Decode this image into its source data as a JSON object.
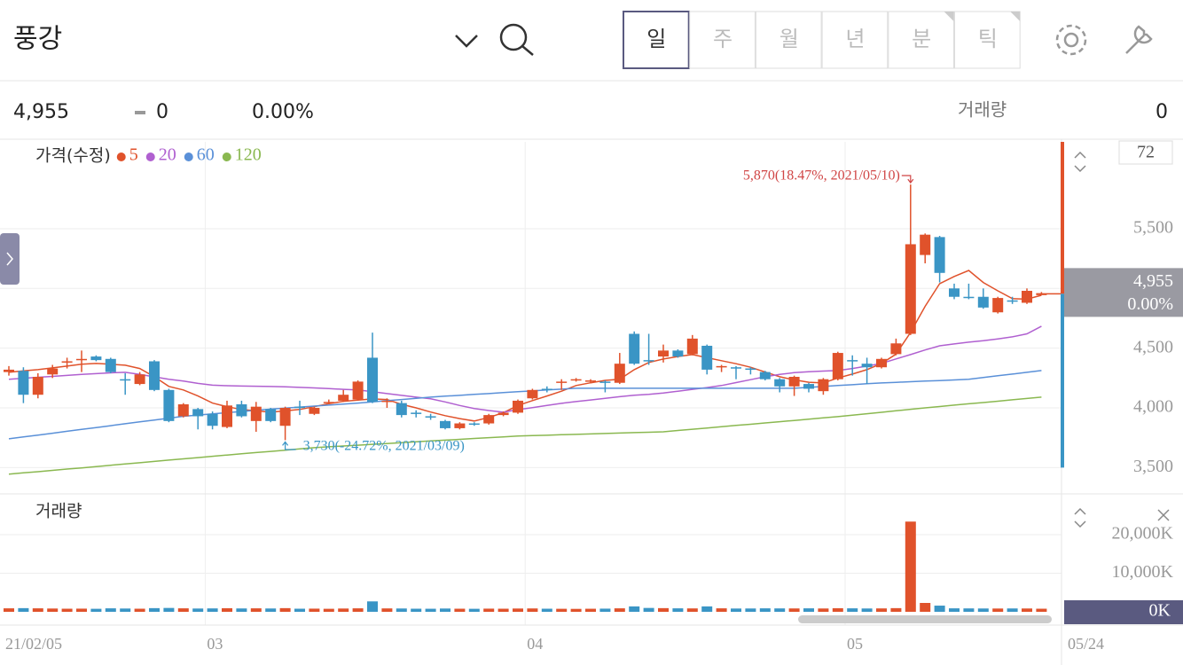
{
  "header": {
    "title": "풍강",
    "tabs": [
      "일",
      "주",
      "월",
      "년",
      "분",
      "틱"
    ],
    "active_tab": "일",
    "price": "4,955",
    "change": "0",
    "change_pct": "0.00%",
    "volume_label": "거래량",
    "volume": "0"
  },
  "chart_data": {
    "type": "candlestick",
    "legend_title": "가격(수정)",
    "visible_count": 72,
    "categories": [
      "21/02/05",
      null,
      null,
      null,
      null,
      null,
      null,
      null,
      null,
      null,
      null,
      null,
      null,
      null,
      "03",
      null,
      null,
      null,
      null,
      null,
      null,
      null,
      null,
      null,
      null,
      null,
      null,
      null,
      null,
      null,
      null,
      null,
      null,
      null,
      null,
      null,
      "04",
      null,
      null,
      null,
      null,
      null,
      null,
      null,
      null,
      null,
      null,
      null,
      null,
      null,
      null,
      null,
      null,
      null,
      null,
      null,
      null,
      null,
      "05",
      null,
      null,
      null,
      null,
      null,
      null,
      null,
      null,
      null,
      null,
      null,
      null,
      "05/24"
    ],
    "open": [
      4300,
      4310,
      4110,
      4280,
      4380,
      4400,
      4430,
      4410,
      4240,
      4200,
      4390,
      4150,
      3930,
      3990,
      3950,
      3840,
      4030,
      3890,
      3990,
      3850,
      4010,
      3950,
      4040,
      4060,
      4070,
      4420,
      4050,
      4040,
      3960,
      3930,
      3890,
      3830,
      3870,
      3870,
      3940,
      3960,
      4080,
      4160,
      4210,
      4230,
      4220,
      4220,
      4210,
      4620,
      4400,
      4430,
      4480,
      4450,
      4520,
      4340,
      4340,
      4330,
      4300,
      4240,
      4180,
      4200,
      4140,
      4240,
      4400,
      4370,
      4340,
      4450,
      4620,
      5280,
      5430,
      5000,
      4930,
      4930,
      4800,
      4900,
      4880,
      4955
    ],
    "high": [
      4350,
      4340,
      4290,
      4360,
      4420,
      4480,
      4440,
      4420,
      4290,
      4300,
      4400,
      4160,
      4040,
      4000,
      3970,
      4060,
      4060,
      4050,
      4000,
      4010,
      4060,
      4010,
      4070,
      4150,
      4230,
      4630,
      4080,
      4060,
      3980,
      3950,
      3900,
      3880,
      3880,
      3950,
      3970,
      4070,
      4160,
      4180,
      4240,
      4250,
      4240,
      4230,
      4460,
      4640,
      4620,
      4530,
      4490,
      4610,
      4530,
      4360,
      4350,
      4340,
      4310,
      4250,
      4270,
      4210,
      4250,
      4470,
      4440,
      4420,
      4420,
      4580,
      5870,
      5460,
      5440,
      5040,
      5040,
      5000,
      4930,
      4930,
      5000,
      4970
    ],
    "low": [
      4270,
      4040,
      4080,
      4250,
      4330,
      4300,
      4390,
      4290,
      4110,
      4190,
      4140,
      3880,
      3920,
      3820,
      3820,
      3830,
      3920,
      3800,
      3880,
      3730,
      3940,
      3940,
      4030,
      4050,
      4060,
      4040,
      4000,
      3920,
      3920,
      3900,
      3820,
      3820,
      3850,
      3860,
      3930,
      3950,
      4070,
      4130,
      4150,
      4220,
      4210,
      4130,
      4200,
      4360,
      4360,
      4380,
      4420,
      4440,
      4280,
      4300,
      4240,
      4280,
      4230,
      4130,
      4100,
      4130,
      4110,
      4230,
      4270,
      4200,
      4330,
      4440,
      4610,
      5210,
      5050,
      4910,
      4910,
      4830,
      4790,
      4870,
      4870,
      4950
    ],
    "close": [
      4320,
      4110,
      4260,
      4330,
      4390,
      4410,
      4400,
      4300,
      4230,
      4280,
      4150,
      3890,
      4030,
      3930,
      3850,
      4020,
      3930,
      4010,
      3890,
      4000,
      4000,
      4000,
      4050,
      4110,
      4220,
      4050,
      4060,
      3940,
      3950,
      3920,
      3830,
      3870,
      3860,
      3940,
      3960,
      4060,
      4150,
      4150,
      4220,
      4240,
      4230,
      4210,
      4370,
      4370,
      4390,
      4480,
      4430,
      4580,
      4320,
      4350,
      4330,
      4320,
      4240,
      4180,
      4260,
      4160,
      4240,
      4460,
      4390,
      4340,
      4410,
      4540,
      5370,
      5450,
      5130,
      4930,
      4920,
      4840,
      4920,
      4890,
      4980,
      4955
    ],
    "up_color": "#e0522b",
    "down_color": "#3a95c5",
    "series": [
      {
        "name": "5",
        "color": "#e0522b",
        "values": [
          4298,
          4310,
          4320,
          4335,
          4350,
          4365,
          4372,
          4365,
          4357,
          4330,
          4261,
          4180,
          4150,
          4100,
          4040,
          4010,
          3987,
          3975,
          3964,
          3975,
          3987,
          4010,
          4035,
          4055,
          4065,
          4075,
          4070,
          4030,
          4000,
          3965,
          3935,
          3910,
          3890,
          3920,
          3960,
          4020,
          4061,
          4100,
          4140,
          4187,
          4210,
          4230,
          4239,
          4320,
          4380,
          4409,
          4430,
          4446,
          4420,
          4395,
          4370,
          4340,
          4300,
          4261,
          4235,
          4215,
          4209,
          4250,
          4283,
          4320,
          4372,
          4450,
          4632,
          4850,
          5040,
          5100,
          5151,
          5050,
          4980,
          4915,
          4910,
          4943
        ]
      },
      {
        "name": "20",
        "color": "#b060d0",
        "values": [
          4239,
          4248,
          4256,
          4264,
          4272,
          4280,
          4287,
          4293,
          4298,
          4280,
          4260,
          4240,
          4224,
          4205,
          4190,
          4186,
          4183,
          4181,
          4179,
          4176,
          4172,
          4167,
          4161,
          4155,
          4150,
          4135,
          4120,
          4105,
          4090,
          4076,
          4050,
          4020,
          3995,
          3978,
          3964,
          3985,
          4002,
          4020,
          4038,
          4053,
          4066,
          4080,
          4094,
          4106,
          4113,
          4125,
          4140,
          4155,
          4170,
          4187,
          4212,
          4236,
          4261,
          4280,
          4295,
          4302,
          4308,
          4313,
          4330,
          4350,
          4372,
          4410,
          4446,
          4485,
          4520,
          4535,
          4550,
          4562,
          4578,
          4595,
          4620,
          4684
        ]
      },
      {
        "name": "60",
        "color": "#5a90d8",
        "values": [
          3741,
          3757,
          3772,
          3788,
          3804,
          3820,
          3835,
          3851,
          3867,
          3883,
          3898,
          3914,
          3930,
          3940,
          3950,
          3960,
          3970,
          3980,
          3990,
          3998,
          4007,
          4015,
          4023,
          4032,
          4040,
          4050,
          4060,
          4070,
          4080,
          4090,
          4098,
          4105,
          4113,
          4120,
          4128,
          4135,
          4142,
          4150,
          4157,
          4164,
          4164,
          4164,
          4164,
          4164,
          4164,
          4164,
          4164,
          4164,
          4164,
          4164,
          4164,
          4164,
          4164,
          4164,
          4164,
          4172,
          4179,
          4187,
          4194,
          4202,
          4209,
          4214,
          4219,
          4224,
          4229,
          4234,
          4239,
          4254,
          4269,
          4283,
          4298,
          4313
        ]
      },
      {
        "name": "120",
        "color": "#8ab850",
        "values": [
          3445,
          3456,
          3466,
          3477,
          3488,
          3498,
          3509,
          3520,
          3530,
          3541,
          3552,
          3563,
          3573,
          3584,
          3595,
          3605,
          3616,
          3626,
          3636,
          3646,
          3657,
          3667,
          3674,
          3681,
          3688,
          3695,
          3702,
          3709,
          3716,
          3723,
          3730,
          3737,
          3744,
          3751,
          3757,
          3764,
          3768,
          3771,
          3775,
          3778,
          3782,
          3786,
          3789,
          3793,
          3796,
          3800,
          3811,
          3821,
          3832,
          3842,
          3853,
          3863,
          3874,
          3884,
          3895,
          3905,
          3916,
          3927,
          3939,
          3951,
          3963,
          3976,
          3988,
          4000,
          4011,
          4023,
          4034,
          4045,
          4056,
          4068,
          4079,
          4090
        ]
      }
    ],
    "ylim": [
      3295,
      6227
    ],
    "yticks": [
      {
        "value": 3500,
        "label": "3,500"
      },
      {
        "value": 4000,
        "label": "4,000"
      },
      {
        "value": 4500,
        "label": "4,500"
      },
      {
        "value": 5000,
        "label": "5,000"
      },
      {
        "value": 5500,
        "label": "5,500"
      }
    ],
    "annotations": {
      "high": "5,870(18.47%, 2021/05/10)",
      "low": "3,730(-24.72%, 2021/03/09)"
    },
    "price_tag": {
      "price": "4,955",
      "change_pct": "0.00%"
    },
    "volume": {
      "title": "거래량",
      "values": [
        900,
        950,
        900,
        850,
        800,
        820,
        780,
        900,
        850,
        800,
        950,
        1000,
        900,
        850,
        880,
        920,
        870,
        900,
        860,
        950,
        800,
        820,
        780,
        850,
        900,
        2700,
        880,
        860,
        800,
        790,
        850,
        800,
        780,
        820,
        800,
        850,
        870,
        800,
        780,
        760,
        790,
        820,
        900,
        1400,
        1000,
        950,
        900,
        880,
        1400,
        900,
        850,
        860,
        900,
        880,
        870,
        900,
        860,
        920,
        900,
        860,
        880,
        950,
        23400,
        2300,
        1600,
        900,
        880,
        860,
        850,
        870,
        860,
        800
      ],
      "ylim": [
        0,
        29900
      ],
      "yticks": [
        {
          "value": 0,
          "label": "0K"
        },
        {
          "value": 10000,
          "label": "10,000K"
        },
        {
          "value": 20000,
          "label": "20,000K"
        }
      ]
    }
  }
}
